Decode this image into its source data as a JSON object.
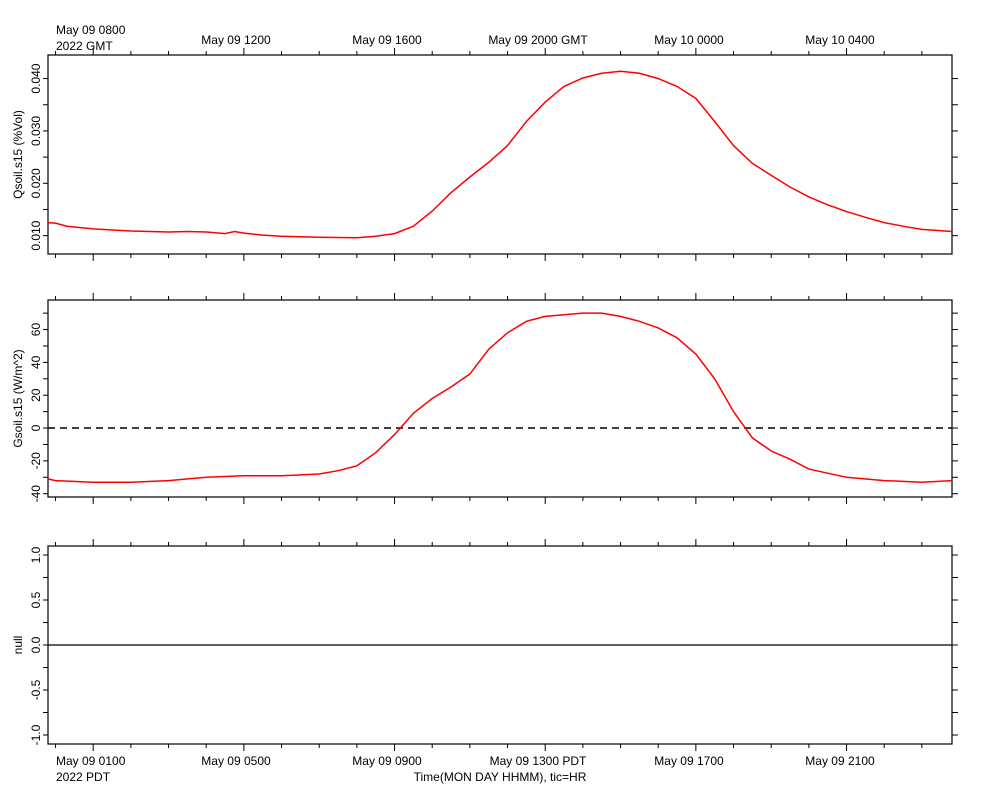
{
  "top_axis": {
    "first_label_line1": "May 09 0800",
    "first_label_line2": "2022 GMT",
    "labels": [
      "May 09 1200",
      "May 09 1600",
      "May 09 2000 GMT",
      "May 10 0000",
      "May 10 0400"
    ]
  },
  "bottom_axis": {
    "first_label_line1": "May 09 0100",
    "first_label_line2": "2022 PDT",
    "labels": [
      "May 09 0500",
      "May 09 0900",
      "May 09 1300 PDT",
      "May 09 1700",
      "May 09 2100"
    ],
    "title": "Time(MON DAY HHMM), tic=HR"
  },
  "colors": {
    "series": "#ff0000",
    "axis": "#000000"
  },
  "chart_data": [
    {
      "type": "line",
      "ylabel": "Qsoil.s15 (%Vol)",
      "xunit": "hours after May 09 0000 PDT (local)",
      "ylim": [
        0.0065,
        0.0445
      ],
      "yticks": [
        0.01,
        0.02,
        0.03,
        0.04
      ],
      "ytick_labels": [
        "0.010",
        "0.020",
        "0.030",
        "0.040"
      ],
      "series": [
        {
          "x": [
            -0.2,
            0,
            0.3,
            1,
            2,
            3,
            3.5,
            4,
            4.5,
            4.75,
            5,
            5.5,
            6,
            7,
            8,
            8.5,
            9,
            9.5,
            10,
            10.5,
            11,
            11.5,
            12,
            12.5,
            13,
            13.5,
            14,
            14.5,
            15,
            15.5,
            16,
            16.5,
            17,
            17.5,
            18,
            18.5,
            19,
            19.5,
            20,
            20.5,
            21,
            21.5,
            22,
            22.5,
            23,
            23.8
          ],
          "y": [
            0.0125,
            0.0124,
            0.0118,
            0.0113,
            0.0109,
            0.0107,
            0.0108,
            0.0107,
            0.0104,
            0.0108,
            0.0105,
            0.0101,
            0.0099,
            0.0097,
            0.0096,
            0.0099,
            0.0104,
            0.0118,
            0.0147,
            0.0182,
            0.0212,
            0.024,
            0.0272,
            0.0318,
            0.0355,
            0.0385,
            0.0401,
            0.041,
            0.0414,
            0.041,
            0.04,
            0.0385,
            0.0362,
            0.0318,
            0.0272,
            0.0238,
            0.0215,
            0.0193,
            0.0174,
            0.0159,
            0.0146,
            0.0135,
            0.0125,
            0.0118,
            0.0112,
            0.0108
          ]
        }
      ]
    },
    {
      "type": "line",
      "ylabel": "Gsoil.s15 (W/m^2)",
      "xunit": "hours after May 09 0000 PDT (local)",
      "ylim": [
        -42,
        78
      ],
      "yticks": [
        -40,
        -20,
        0,
        20,
        40,
        60
      ],
      "ytick_labels": [
        "-40",
        "-20",
        "0",
        "20",
        "40",
        "60"
      ],
      "zero_line": "dashed",
      "series": [
        {
          "x": [
            -0.2,
            0,
            1,
            2,
            3,
            4,
            5,
            6,
            7,
            7.5,
            8,
            8.5,
            9,
            9.5,
            10,
            10.5,
            11,
            11.5,
            12,
            12.5,
            13,
            13.5,
            14,
            14.5,
            15,
            15.5,
            16,
            16.5,
            17,
            17.5,
            18,
            18.5,
            19,
            19.5,
            20,
            21,
            22,
            23,
            23.8
          ],
          "y": [
            -31,
            -32,
            -33,
            -33,
            -32,
            -30,
            -29,
            -29,
            -28,
            -26,
            -23,
            -15,
            -4,
            9,
            18,
            25,
            33,
            48,
            58,
            65,
            68,
            69,
            70,
            70,
            68,
            65,
            61,
            55,
            45,
            30,
            10,
            -6,
            -14,
            -19,
            -25,
            -30,
            -32,
            -33,
            -32
          ]
        }
      ]
    },
    {
      "type": "line",
      "ylabel": "null",
      "ylim": [
        -1.1,
        1.1
      ],
      "yticks": [
        -1.0,
        -0.5,
        0.0,
        0.5,
        1.0
      ],
      "ytick_labels": [
        "-1.0",
        "-0.5",
        "0.0",
        "0.5",
        "1.0"
      ],
      "series": [
        {
          "x": [
            -0.2,
            23.8
          ],
          "y": [
            0,
            0
          ]
        }
      ]
    }
  ]
}
